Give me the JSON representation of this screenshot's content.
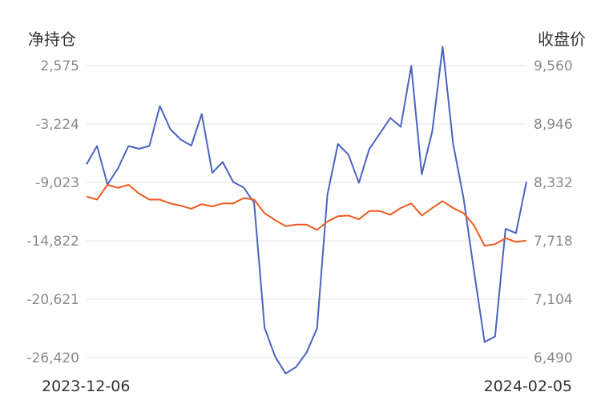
{
  "chart_data": {
    "type": "line",
    "title": "",
    "left_axis_label": "净持仓",
    "right_axis_label": "收盘价",
    "left_ticks": [
      "2,575",
      "-3,224",
      "-9,023",
      "-14,822",
      "-20,621",
      "-26,420"
    ],
    "right_ticks": [
      "9,560",
      "8,946",
      "8,332",
      "7,718",
      "7,104",
      "6,490"
    ],
    "left_ylim": [
      -26420,
      2575
    ],
    "right_ylim": [
      6490,
      9560
    ],
    "x_start_label": "2023-12-06",
    "x_end_label": "2024-02-05",
    "grid": true,
    "legend": "none",
    "series": [
      {
        "axis": "left",
        "color": "#4a63c0",
        "values": [
          -7230,
          -5410,
          -9230,
          -7640,
          -5410,
          -5690,
          -5410,
          -1440,
          -3740,
          -4770,
          -5370,
          -2230,
          -8060,
          -7000,
          -8980,
          -9530,
          -11040,
          -23460,
          -26320,
          -28000,
          -27360,
          -25920,
          -23540,
          -10240,
          -5210,
          -6270,
          -9060,
          -5700,
          -4170,
          -2630,
          -3500,
          2540,
          -8220,
          -3980,
          4450,
          -5210,
          -10640,
          -17870,
          -24870,
          -24320,
          -13620,
          -14060,
          -8940
        ]
      },
      {
        "axis": "right",
        "color": "#ee5a1e",
        "values": [
          8183,
          8151,
          8307,
          8275,
          8307,
          8215,
          8151,
          8151,
          8111,
          8087,
          8055,
          8103,
          8079,
          8111,
          8111,
          8167,
          8151,
          8008,
          7936,
          7872,
          7888,
          7888,
          7832,
          7920,
          7976,
          7984,
          7944,
          8031,
          8031,
          7992,
          8063,
          8111,
          7984,
          8063,
          8135,
          8063,
          8008,
          7880,
          7666,
          7682,
          7746,
          7706,
          7720
        ]
      }
    ]
  }
}
